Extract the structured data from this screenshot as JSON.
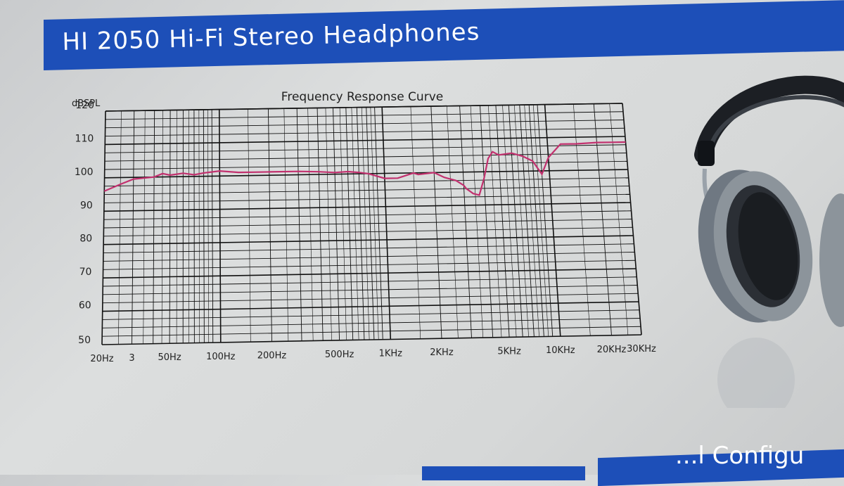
{
  "header": {
    "title": "HI 2050 Hi-Fi Stereo Headphones"
  },
  "footer": {
    "partial_title": "...l Configu"
  },
  "chart_data": {
    "type": "line",
    "title": "Frequency Response Curve",
    "ylabel": "dBSPL",
    "xlabel": "",
    "y_ticks": [
      "120",
      "110",
      "100",
      "90",
      "80",
      "70",
      "60",
      "50"
    ],
    "y_values": [
      120,
      110,
      100,
      90,
      80,
      70,
      60,
      50
    ],
    "x_tick_labels": [
      "20Hz",
      "3",
      "50Hz",
      "100Hz",
      "200Hz",
      "500Hz",
      "1KHz",
      "2KHz",
      "5KHz",
      "10KHz",
      "20KHz",
      "30KHz"
    ],
    "x_tick_freqs": [
      20,
      30,
      50,
      100,
      200,
      500,
      1000,
      2000,
      5000,
      10000,
      20000,
      30000
    ],
    "ylim": [
      50,
      120
    ],
    "xlim": [
      20,
      30000
    ],
    "x_scale": "log",
    "grid": true,
    "color": "#c2306e",
    "series": [
      {
        "x": [
          20,
          25,
          30,
          40,
          45,
          50,
          60,
          70,
          80,
          100,
          130,
          160,
          200,
          300,
          400,
          500,
          600,
          700,
          800,
          1000,
          1200,
          1500,
          1600,
          2000,
          2300,
          2700,
          3000,
          3100,
          3400,
          3700,
          4000,
          4300,
          4600,
          5000,
          6000,
          7000,
          8000,
          9000,
          10000,
          12000,
          15000,
          20000,
          25000,
          30000
        ],
        "y": [
          96,
          98,
          99.5,
          100,
          101,
          100.5,
          101,
          100.5,
          101,
          101.5,
          101,
          101,
          101,
          101,
          100.8,
          100.5,
          100.7,
          100.4,
          100,
          98.5,
          98.5,
          100,
          99.5,
          100,
          98.5,
          97.5,
          96,
          95,
          93.5,
          93,
          98,
          104,
          106,
          105,
          105.5,
          104.5,
          103,
          99,
          104,
          108,
          108,
          108.3,
          108.3,
          108.3
        ]
      }
    ]
  },
  "illustration": {
    "icon": "headphones-icon"
  }
}
